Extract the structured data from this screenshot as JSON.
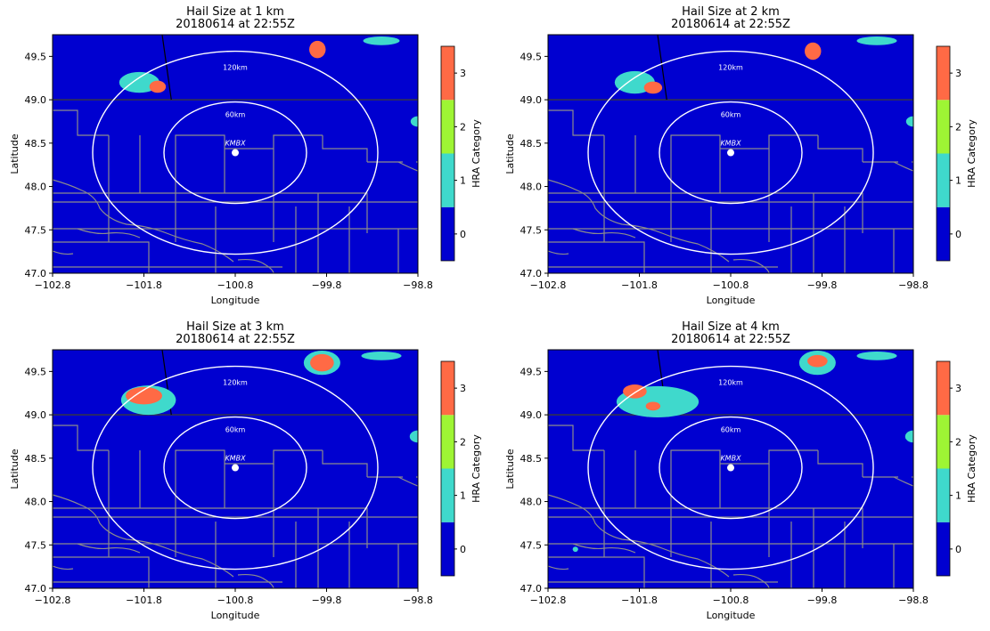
{
  "colors": {
    "ocean": "#0000d0",
    "cat0": "#0000d0",
    "cat1": "#3fd9cc",
    "cat2": "#9ef534",
    "cat3": "#ff6a45",
    "border": "#8c8c8c",
    "range_ring": "#ffffff"
  },
  "chart_data": [
    {
      "type": "heatmap",
      "title": "Hail Size at 1 km",
      "subtitle": "20180614 at 22:55Z",
      "xlabel": "Longitude",
      "ylabel": "Latitude",
      "xticks": [
        "−102.8",
        "−101.8",
        "−100.8",
        "−99.8",
        "−98.8"
      ],
      "yticks": [
        "47.0",
        "47.5",
        "48.0",
        "48.5",
        "49.0",
        "49.5"
      ],
      "xlim": [
        -102.8,
        -98.8
      ],
      "ylim": [
        47.0,
        49.75
      ],
      "colorbar": {
        "label": "HRA Category",
        "ticks": [
          "0",
          "1",
          "2",
          "3"
        ]
      },
      "radar": {
        "name": "KMBX",
        "lon": -100.8,
        "lat": 48.39
      },
      "rings": [
        "60km",
        "120km"
      ],
      "cells": [
        {
          "lon": -101.85,
          "lat": 49.2,
          "rlon": 0.22,
          "rlat": 0.12,
          "category": 1
        },
        {
          "lon": -101.65,
          "lat": 49.15,
          "rlon": 0.09,
          "rlat": 0.07,
          "category": 3
        },
        {
          "lon": -99.9,
          "lat": 49.58,
          "rlon": 0.09,
          "rlat": 0.1,
          "category": 3
        },
        {
          "lon": -99.2,
          "lat": 49.68,
          "rlon": 0.2,
          "rlat": 0.05,
          "category": 1
        },
        {
          "lon": -98.8,
          "lat": 48.75,
          "rlon": 0.08,
          "rlat": 0.06,
          "category": 1
        }
      ]
    },
    {
      "type": "heatmap",
      "title": "Hail Size at 2 km",
      "subtitle": "20180614 at 22:55Z",
      "xlabel": "Longitude",
      "ylabel": "Latitude",
      "xticks": [
        "−102.8",
        "−101.8",
        "−100.8",
        "−99.8",
        "−98.8"
      ],
      "yticks": [
        "47.0",
        "47.5",
        "48.0",
        "48.5",
        "49.0",
        "49.5"
      ],
      "xlim": [
        -102.8,
        -98.8
      ],
      "ylim": [
        47.0,
        49.75
      ],
      "colorbar": {
        "label": "HRA Category",
        "ticks": [
          "0",
          "1",
          "2",
          "3"
        ]
      },
      "radar": {
        "name": "KMBX",
        "lon": -100.8,
        "lat": 48.39
      },
      "rings": [
        "60km",
        "120km"
      ],
      "cells": [
        {
          "lon": -101.85,
          "lat": 49.2,
          "rlon": 0.22,
          "rlat": 0.13,
          "category": 1
        },
        {
          "lon": -101.65,
          "lat": 49.14,
          "rlon": 0.1,
          "rlat": 0.07,
          "category": 3
        },
        {
          "lon": -99.9,
          "lat": 49.56,
          "rlon": 0.09,
          "rlat": 0.1,
          "category": 3
        },
        {
          "lon": -99.2,
          "lat": 49.68,
          "rlon": 0.22,
          "rlat": 0.05,
          "category": 1
        },
        {
          "lon": -98.8,
          "lat": 48.75,
          "rlon": 0.08,
          "rlat": 0.06,
          "category": 1
        }
      ]
    },
    {
      "type": "heatmap",
      "title": "Hail Size at 3 km",
      "subtitle": "20180614 at 22:55Z",
      "xlabel": "Longitude",
      "ylabel": "Latitude",
      "xticks": [
        "−102.8",
        "−101.8",
        "−100.8",
        "−99.8",
        "−98.8"
      ],
      "yticks": [
        "47.0",
        "47.5",
        "48.0",
        "48.5",
        "49.0",
        "49.5"
      ],
      "xlim": [
        -102.8,
        -98.8
      ],
      "ylim": [
        47.0,
        49.75
      ],
      "colorbar": {
        "label": "HRA Category",
        "ticks": [
          "0",
          "1",
          "2",
          "3"
        ]
      },
      "radar": {
        "name": "KMBX",
        "lon": -100.8,
        "lat": 48.39
      },
      "rings": [
        "60km",
        "120km"
      ],
      "cells": [
        {
          "lon": -101.75,
          "lat": 49.17,
          "rlon": 0.3,
          "rlat": 0.17,
          "category": 1
        },
        {
          "lon": -101.8,
          "lat": 49.22,
          "rlon": 0.2,
          "rlat": 0.1,
          "category": 3
        },
        {
          "lon": -99.85,
          "lat": 49.6,
          "rlon": 0.2,
          "rlat": 0.14,
          "category": 1
        },
        {
          "lon": -99.85,
          "lat": 49.6,
          "rlon": 0.13,
          "rlat": 0.1,
          "category": 3
        },
        {
          "lon": -99.2,
          "lat": 49.68,
          "rlon": 0.22,
          "rlat": 0.05,
          "category": 1
        },
        {
          "lon": -98.8,
          "lat": 48.75,
          "rlon": 0.09,
          "rlat": 0.07,
          "category": 1
        }
      ]
    },
    {
      "type": "heatmap",
      "title": "Hail Size at 4 km",
      "subtitle": "20180614 at 22:55Z",
      "xlabel": "Longitude",
      "ylabel": "Latitude",
      "xticks": [
        "−102.8",
        "−101.8",
        "−100.8",
        "−99.8",
        "−98.8"
      ],
      "yticks": [
        "47.0",
        "47.5",
        "48.0",
        "48.5",
        "49.0",
        "49.5"
      ],
      "xlim": [
        -102.8,
        -98.8
      ],
      "ylim": [
        47.0,
        49.75
      ],
      "colorbar": {
        "label": "HRA Category",
        "ticks": [
          "0",
          "1",
          "2",
          "3"
        ]
      },
      "radar": {
        "name": "KMBX",
        "lon": -100.8,
        "lat": 48.39
      },
      "rings": [
        "60km",
        "120km"
      ],
      "cells": [
        {
          "lon": -101.6,
          "lat": 49.15,
          "rlon": 0.45,
          "rlat": 0.18,
          "category": 1
        },
        {
          "lon": -101.85,
          "lat": 49.27,
          "rlon": 0.13,
          "rlat": 0.08,
          "category": 3
        },
        {
          "lon": -101.65,
          "lat": 49.1,
          "rlon": 0.08,
          "rlat": 0.05,
          "category": 3
        },
        {
          "lon": -99.85,
          "lat": 49.6,
          "rlon": 0.2,
          "rlat": 0.14,
          "category": 1
        },
        {
          "lon": -99.85,
          "lat": 49.62,
          "rlon": 0.11,
          "rlat": 0.07,
          "category": 3
        },
        {
          "lon": -99.2,
          "lat": 49.68,
          "rlon": 0.22,
          "rlat": 0.05,
          "category": 1
        },
        {
          "lon": -98.8,
          "lat": 48.75,
          "rlon": 0.09,
          "rlat": 0.07,
          "category": 1
        },
        {
          "lon": -102.5,
          "lat": 47.45,
          "rlon": 0.03,
          "rlat": 0.03,
          "category": 1
        }
      ]
    }
  ]
}
